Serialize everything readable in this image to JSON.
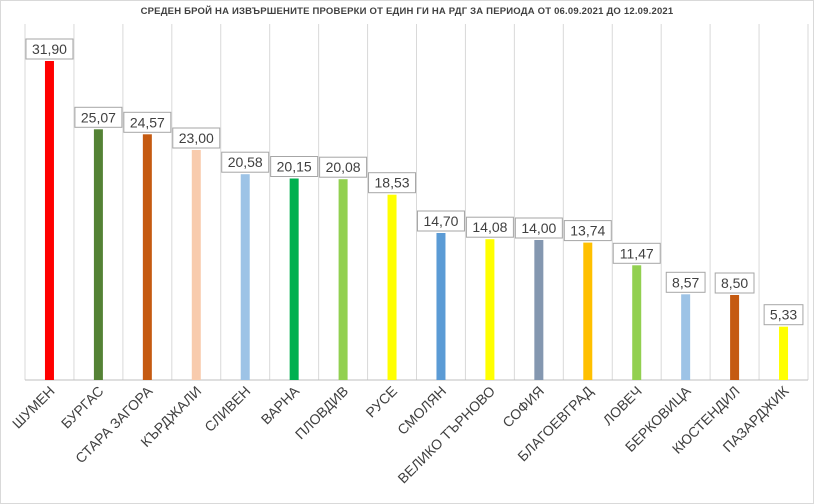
{
  "chart_data": {
    "type": "bar",
    "title": "СРЕДЕН БРОЙ НА ИЗВЪРШЕНИТЕ ПРОВЕРКИ ОТ ЕДИН ГИ НА РДГ ЗА ПЕРИОДА ОТ 06.09.2021 ДО 12.09.2021",
    "xlabel": "",
    "ylabel": "",
    "ylim": [
      0,
      34
    ],
    "grid": "vertical-category-lines",
    "legend": "none",
    "categories": [
      "ШУМЕН",
      "БУРГАС",
      "СТАРА ЗАГОРА",
      "КЪРДЖАЛИ",
      "СЛИВЕН",
      "ВАРНА",
      "ПЛОВДИВ",
      "РУСЕ",
      "СМОЛЯН",
      "ВЕЛИКО ТЪРНОВО",
      "СОФИЯ",
      "БЛАГОЕВГРАД",
      "ЛОВЕЧ",
      "БЕРКОВИЦА",
      "КЮСТЕНДИЛ",
      "ПАЗАРДЖИК"
    ],
    "values": [
      31.9,
      25.07,
      24.57,
      23.0,
      20.58,
      20.15,
      20.08,
      18.53,
      14.7,
      14.08,
      14.0,
      13.74,
      11.47,
      8.57,
      8.5,
      5.33
    ],
    "data_labels": [
      "31,90",
      "25,07",
      "24,57",
      "23,00",
      "20,58",
      "20,15",
      "20,08",
      "18,53",
      "14,70",
      "14,08",
      "14,00",
      "13,74",
      "11,47",
      "8,57",
      "8,50",
      "5,33"
    ],
    "colors": [
      "#ff0000",
      "#548235",
      "#c55a11",
      "#f8cbad",
      "#9dc3e6",
      "#00b050",
      "#92d050",
      "#ffff00",
      "#5b9bd5",
      "#ffff00",
      "#8497b0",
      "#ffc000",
      "#92d050",
      "#9dc3e6",
      "#c55a11",
      "#ffff00"
    ]
  }
}
